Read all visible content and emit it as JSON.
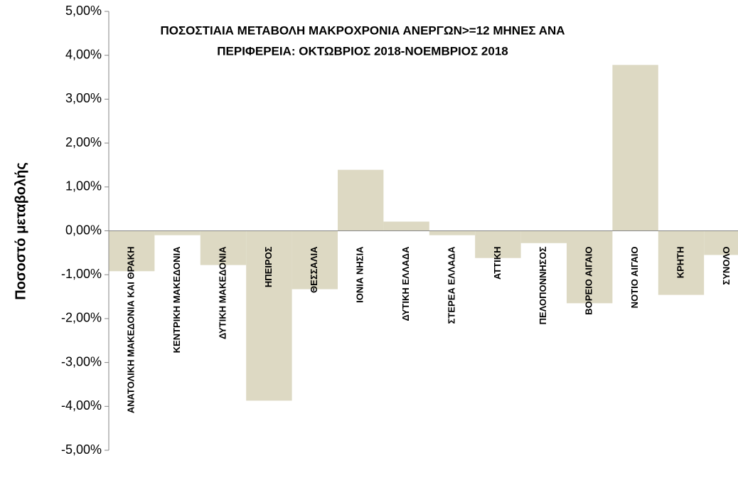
{
  "chart_data": {
    "type": "bar",
    "title": [
      "ΠΟΣΟΣΤΙΑΙΑ ΜΕΤΑΒΟΛΗ ΜΑΚΡΟΧΡΟΝΙΑ ΑΝΕΡΓΩΝ>=12 ΜΗΝΕΣ ΑΝΑ",
      "ΠΕΡΙΦΕΡΕΙΑ:  ΟΚΤΩΒΡΙΟΣ 2018-ΝΟΕΜΒΡΙΟΣ 2018"
    ],
    "y_label": "Ποσοστό μεταβολής",
    "categories": [
      "ΑΝΑΤΟΛΙΚΗ ΜΑΚΕΔΟΝΙΑ ΚΑΙ ΘΡΑΚΗ",
      "ΚΕΝΤΡΙΚΗ ΜΑΚΕΔΟΝΙΑ",
      "ΔΥΤΙΚΗ ΜΑΚΕΔΟΝΙΑ",
      "ΗΠΕΙΡΟΣ",
      "ΘΕΣΣΑΛΙΑ",
      "ΙΟΝΙΑ ΝΗΣΙΑ",
      "ΔΥΤΙΚΗ ΕΛΛΑΔΑ",
      "ΣΤΕΡΕΑ ΕΛΛΑΔΑ",
      "ΑΤΤΙΚΗ",
      "ΠΕΛΟΠΟΝΝΗΣΟΣ",
      "ΒΟΡΕΙΟ ΑΙΓΑΙΟ",
      "ΝΟΤΙΟ ΑΙΓΑΙΟ",
      "ΚΡΗΤΗ",
      "ΣΥΝΟΛΟ"
    ],
    "values": [
      -0.92,
      -0.1,
      -0.78,
      -3.87,
      -1.33,
      1.39,
      0.21,
      -0.1,
      -0.62,
      -0.28,
      -1.65,
      3.78,
      -1.46,
      -0.55
    ],
    "color": "#ddd9c3",
    "ylim": [
      -5,
      5
    ],
    "yticks": [
      {
        "value": -5,
        "label": "-5,00%"
      },
      {
        "value": -4,
        "label": "-4,00%"
      },
      {
        "value": -3,
        "label": "-3,00%"
      },
      {
        "value": -2,
        "label": "-2,00%"
      },
      {
        "value": -1,
        "label": "-1,00%"
      },
      {
        "value": 0,
        "label": "0,00%"
      },
      {
        "value": 1,
        "label": "1,00%"
      },
      {
        "value": 2,
        "label": "2,00%"
      },
      {
        "value": 3,
        "label": "3,00%"
      },
      {
        "value": 4,
        "label": "4,00%"
      },
      {
        "value": 5,
        "label": "5,00%"
      }
    ],
    "grid": false
  }
}
